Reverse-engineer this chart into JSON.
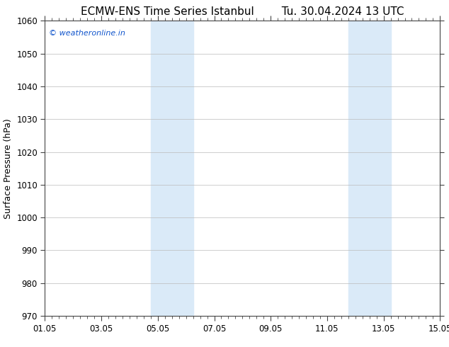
{
  "title": "ECMW-ENS Time Series Istanbul",
  "title2": "Tu. 30.04.2024 13 UTC",
  "ylabel": "Surface Pressure (hPa)",
  "ylim": [
    970,
    1060
  ],
  "yticks": [
    970,
    980,
    990,
    1000,
    1010,
    1020,
    1030,
    1040,
    1050,
    1060
  ],
  "xtick_labels": [
    "01.05",
    "03.05",
    "05.05",
    "07.05",
    "09.05",
    "11.05",
    "13.05",
    "15.05"
  ],
  "xtick_positions": [
    0,
    2,
    4,
    6,
    8,
    10,
    12,
    14
  ],
  "xlim": [
    0,
    14
  ],
  "x_minor_step": 0.25,
  "shaded_bands": [
    {
      "x_start": 3.75,
      "x_end": 5.25
    },
    {
      "x_start": 10.75,
      "x_end": 12.25
    }
  ],
  "shaded_color": "#daeaf8",
  "background_color": "#ffffff",
  "plot_bg_color": "#ffffff",
  "grid_color": "#bbbbbb",
  "border_color": "#444444",
  "tick_color": "#444444",
  "watermark_text": "© weatheronline.in",
  "watermark_color": "#1155cc",
  "title_fontsize": 11,
  "ylabel_fontsize": 9,
  "tick_fontsize": 8.5,
  "watermark_fontsize": 8
}
